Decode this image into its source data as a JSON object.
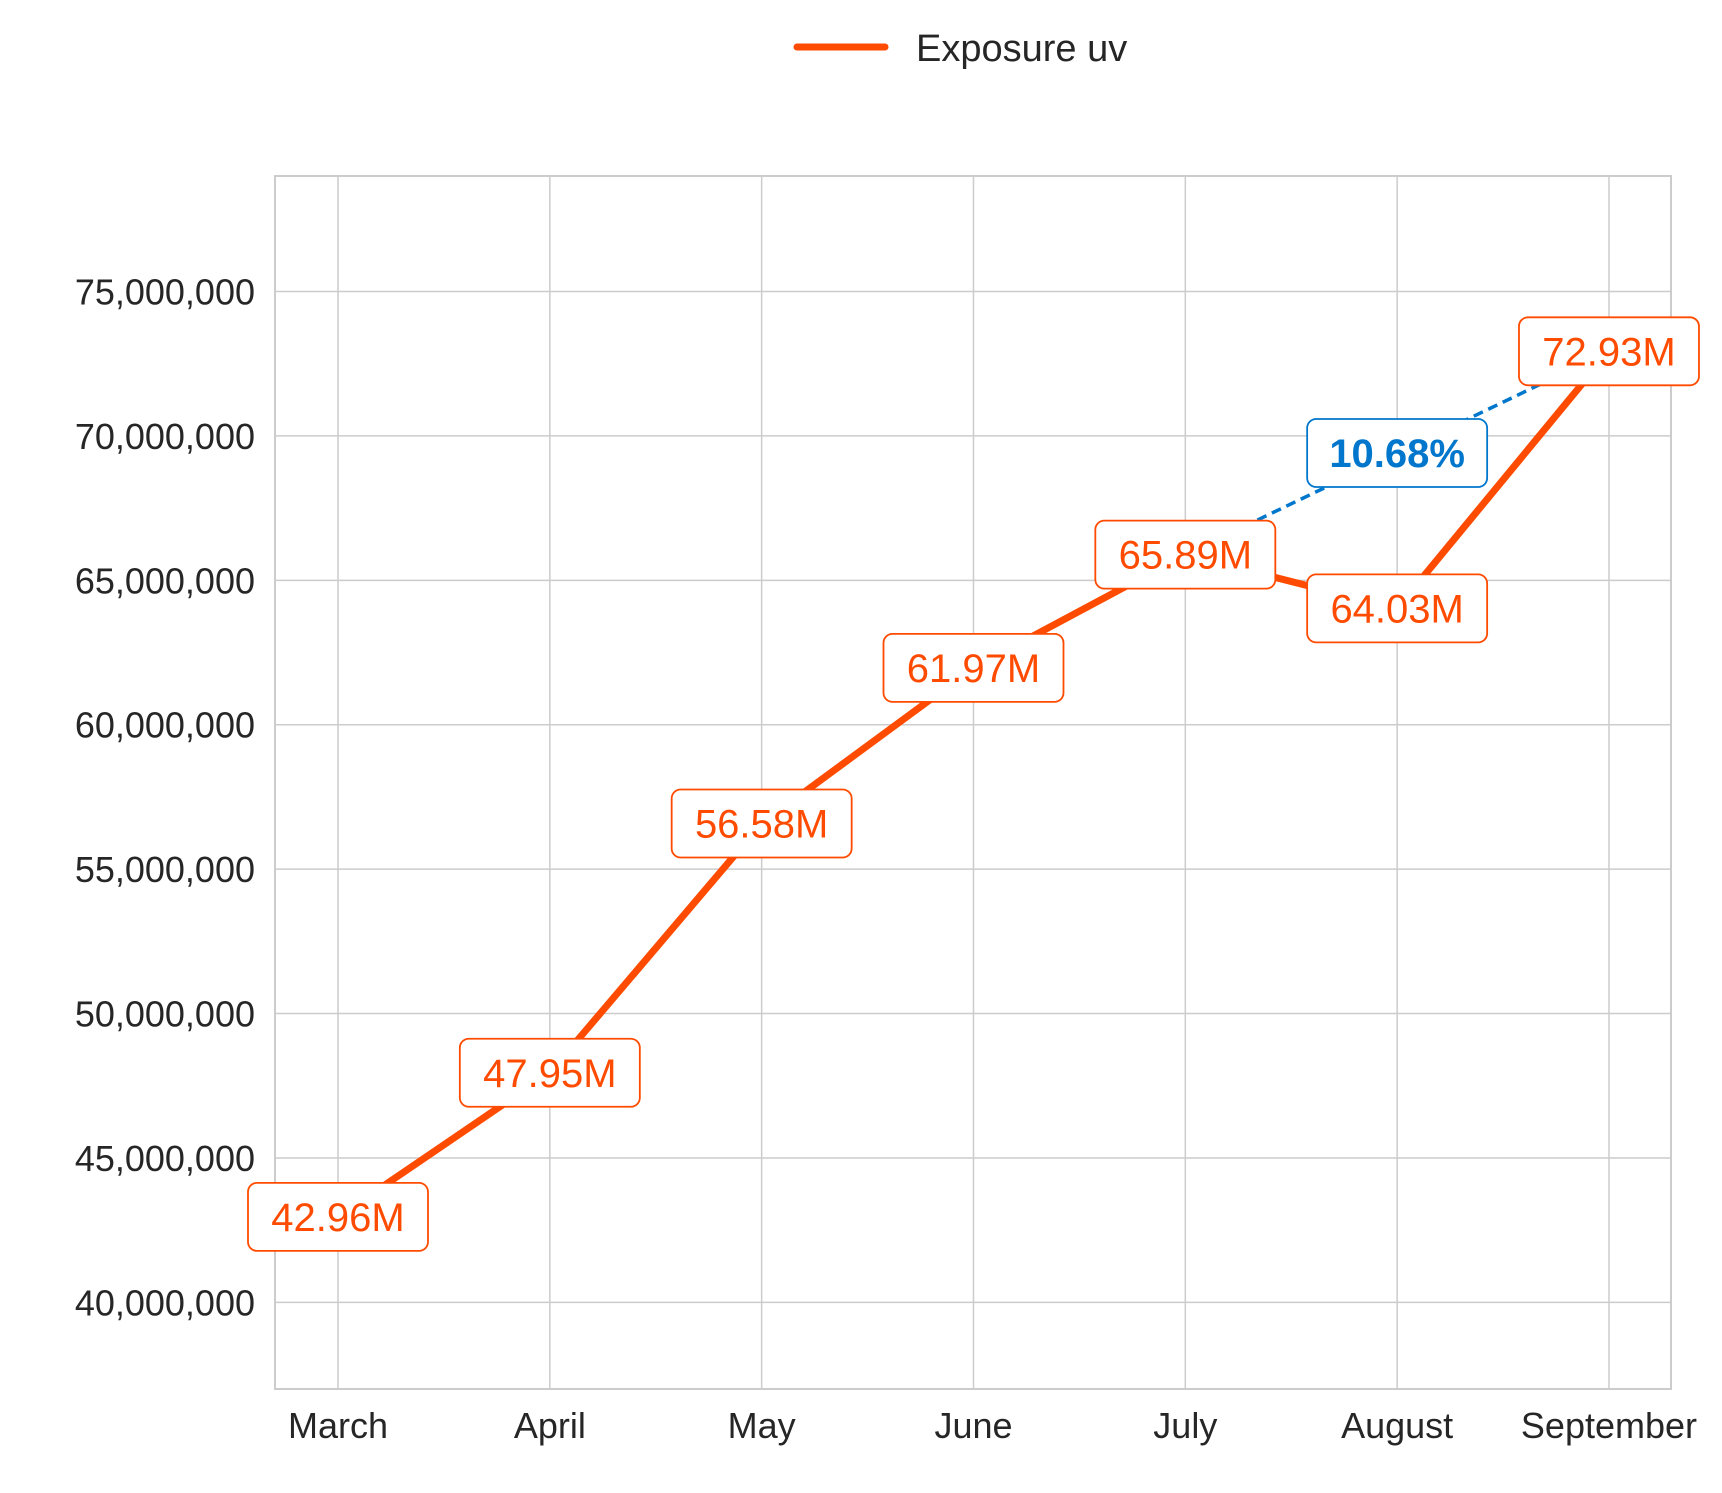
{
  "chart_data": {
    "type": "line",
    "categories": [
      "March",
      "April",
      "May",
      "June",
      "July",
      "August",
      "September"
    ],
    "series": [
      {
        "name": "Exposure uv",
        "values": [
          42960000,
          47950000,
          56580000,
          61970000,
          65890000,
          64030000,
          72930000
        ],
        "labels": [
          "42.96M",
          "47.95M",
          "56.58M",
          "61.97M",
          "65.89M",
          "64.03M",
          "72.93M"
        ]
      }
    ],
    "annotation": {
      "text": "10.68%",
      "from_category": "July",
      "to_category": "September",
      "style": "dashed"
    },
    "ylim": [
      37000000,
      79000000
    ],
    "yticks": [
      40000000,
      45000000,
      50000000,
      55000000,
      60000000,
      65000000,
      70000000,
      75000000
    ],
    "ytick_labels": [
      "40,000,000",
      "45,000,000",
      "50,000,000",
      "55,000,000",
      "60,000,000",
      "65,000,000",
      "70,000,000",
      "75,000,000"
    ],
    "title": "",
    "xlabel": "",
    "ylabel": "",
    "grid": true,
    "legend_position": "top-center",
    "colors": {
      "series": "#FF4B00",
      "annotation": "#0077CC",
      "grid": "#CCCCCC",
      "axis_frame": "#CCCCCC",
      "text": "#262626"
    }
  }
}
